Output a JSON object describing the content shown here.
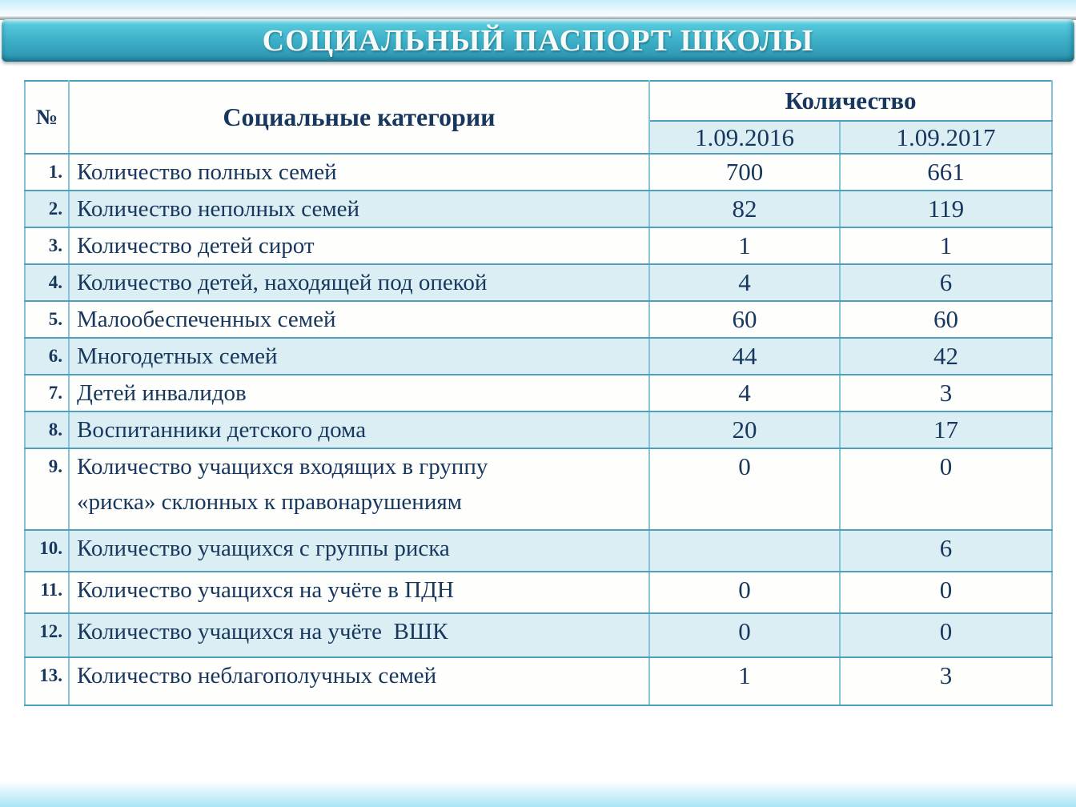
{
  "slide": {
    "title": "СОЦИАЛЬНЫЙ ПАСПОРТ ШКОЛЫ"
  },
  "table": {
    "headers": {
      "number": "№",
      "category": "Социальные категории",
      "quantity": "Количество",
      "col2016": "1.09.2016",
      "col2017": "1.09.2017"
    },
    "rows": [
      {
        "num": "1.",
        "category": "Количество полных семей",
        "v2016": "700",
        "v2017": "661"
      },
      {
        "num": "2.",
        "category": "Количество неполных семей",
        "v2016": "82",
        "v2017": "119"
      },
      {
        "num": "3.",
        "category": "Количество детей сирот",
        "v2016": "1",
        "v2017": "1"
      },
      {
        "num": "4.",
        "category": "Количество детей, находящей под опекой",
        "v2016": "4",
        "v2017": "6"
      },
      {
        "num": "5.",
        "category": "Малообеспеченных семей",
        "v2016": "60",
        "v2017": "60"
      },
      {
        "num": "6.",
        "category": "Многодетных семей",
        "v2016": "44",
        "v2017": "42"
      },
      {
        "num": "7.",
        "category": "Детей инвалидов",
        "v2016": "4",
        "v2017": "3"
      },
      {
        "num": "8.",
        "category": "Воспитанники детского дома",
        "v2016": "20",
        "v2017": "17"
      },
      {
        "num": "9.",
        "category": "Количество учащихся входящих в группу\n«риска» склонных к правонарушениям",
        "v2016": "0",
        "v2017": "0"
      },
      {
        "num": "10.",
        "category": "Количество учащихся с группы риска",
        "v2016": "",
        "v2017": "6"
      },
      {
        "num": "11.",
        "category": "Количество учащихся на учёте в ПДН",
        "v2016": "0",
        "v2017": "0"
      },
      {
        "num": "12.",
        "category": "Количество учащихся на учёте  ВШК",
        "v2016": "0",
        "v2017": "0"
      },
      {
        "num": "13.",
        "category": "Количество неблагополучных семей",
        "v2016": "1",
        "v2017": "3"
      }
    ]
  },
  "colors": {
    "text_navy": "#17375e",
    "band_fill": "#daeef3",
    "border_h": "#4f9fbd",
    "border_v": "#86c2d8",
    "banner_top": "#a6e7f0",
    "banner_mid": "#3fb2ca",
    "banner_bottom": "#2b91ab",
    "strip_blue": "#c9ecf9",
    "fade_cyan": "#a9e4f6"
  }
}
